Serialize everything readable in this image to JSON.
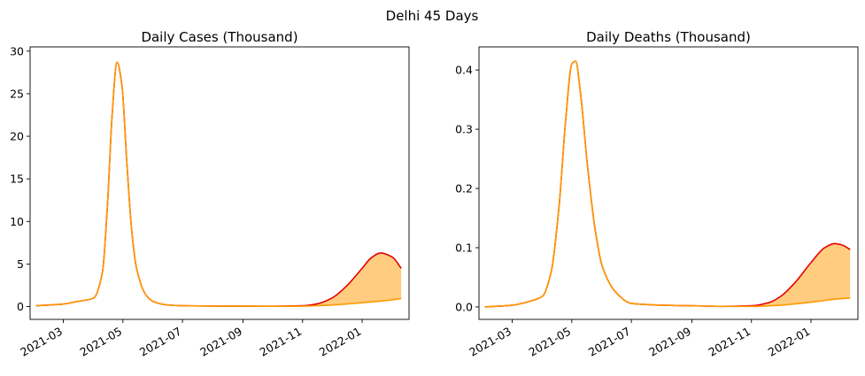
{
  "figure": {
    "suptitle": "Delhi 45 Days"
  },
  "colors": {
    "upper": "#e60000",
    "lower": "#ff9900",
    "band": "#ffcc80",
    "axis": "#000000"
  },
  "chart_data": [
    {
      "type": "area",
      "title": "Daily Cases (Thousand)",
      "xlabel": "",
      "ylabel": "",
      "xlim": [
        "2021-01-26",
        "2022-02-18"
      ],
      "ylim": [
        -1.5,
        30.5
      ],
      "yticks": [
        0,
        5,
        10,
        15,
        20,
        25,
        30
      ],
      "ytick_labels": [
        "0",
        "5",
        "10",
        "15",
        "20",
        "25",
        "30"
      ],
      "xticks": [
        "2021-03-01",
        "2021-05-01",
        "2021-07-01",
        "2021-09-01",
        "2021-11-01",
        "2022-01-01"
      ],
      "xtick_labels": [
        "2021-03",
        "2021-05",
        "2021-07",
        "2021-09",
        "2021-11",
        "2022-01"
      ],
      "grid": false,
      "legend": "none",
      "x": [
        "2021-02-01",
        "2021-03-01",
        "2021-03-15",
        "2021-04-01",
        "2021-04-10",
        "2021-04-15",
        "2021-04-20",
        "2021-04-25",
        "2021-04-30",
        "2021-05-05",
        "2021-05-10",
        "2021-05-15",
        "2021-05-25",
        "2021-06-01",
        "2021-06-15",
        "2021-07-01",
        "2021-08-01",
        "2021-09-01",
        "2021-10-01",
        "2021-11-01",
        "2021-11-15",
        "2021-12-01",
        "2021-12-15",
        "2022-01-01",
        "2022-01-10",
        "2022-01-20",
        "2022-02-01",
        "2022-02-10"
      ],
      "series": [
        {
          "values": [
            0.1,
            0.3,
            0.6,
            1.0,
            4.0,
            11.5,
            22.5,
            28.7,
            26.0,
            17.0,
            9.0,
            4.5,
            1.3,
            0.6,
            0.2,
            0.1,
            0.06,
            0.05,
            0.04,
            0.1,
            0.3,
            1.0,
            2.3,
            4.5,
            5.7,
            6.3,
            5.8,
            4.5
          ]
        },
        {
          "values": [
            0.1,
            0.3,
            0.6,
            1.0,
            4.0,
            11.5,
            22.5,
            28.7,
            26.0,
            17.0,
            9.0,
            4.5,
            1.3,
            0.6,
            0.2,
            0.1,
            0.06,
            0.05,
            0.04,
            0.05,
            0.1,
            0.18,
            0.3,
            0.45,
            0.55,
            0.65,
            0.8,
            0.95
          ]
        }
      ]
    },
    {
      "type": "area",
      "title": "Daily Deaths (Thousand)",
      "xlabel": "",
      "ylabel": "",
      "xlim": [
        "2021-01-26",
        "2022-02-18"
      ],
      "ylim": [
        -0.021,
        0.439
      ],
      "yticks": [
        0.0,
        0.1,
        0.2,
        0.3,
        0.4
      ],
      "ytick_labels": [
        "0.0",
        "0.1",
        "0.2",
        "0.3",
        "0.4"
      ],
      "xticks": [
        "2021-03-01",
        "2021-05-01",
        "2021-07-01",
        "2021-09-01",
        "2021-11-01",
        "2022-01-01"
      ],
      "xtick_labels": [
        "2021-03",
        "2021-05",
        "2021-07",
        "2021-09",
        "2021-11",
        "2022-01"
      ],
      "grid": false,
      "legend": "none",
      "x": [
        "2021-02-01",
        "2021-03-01",
        "2021-03-20",
        "2021-04-01",
        "2021-04-10",
        "2021-04-18",
        "2021-04-25",
        "2021-05-01",
        "2021-05-05",
        "2021-05-10",
        "2021-05-17",
        "2021-05-25",
        "2021-06-01",
        "2021-06-15",
        "2021-07-01",
        "2021-08-01",
        "2021-09-01",
        "2021-10-01",
        "2021-11-01",
        "2021-11-20",
        "2021-12-01",
        "2021-12-15",
        "2022-01-01",
        "2022-01-15",
        "2022-01-25",
        "2022-02-01",
        "2022-02-10"
      ],
      "series": [
        {
          "values": [
            0.0,
            0.003,
            0.01,
            0.018,
            0.06,
            0.17,
            0.32,
            0.41,
            0.415,
            0.36,
            0.24,
            0.13,
            0.07,
            0.025,
            0.006,
            0.003,
            0.002,
            0.001,
            0.002,
            0.008,
            0.018,
            0.04,
            0.075,
            0.1,
            0.107,
            0.105,
            0.097
          ]
        },
        {
          "values": [
            0.0,
            0.003,
            0.01,
            0.018,
            0.06,
            0.17,
            0.32,
            0.41,
            0.415,
            0.36,
            0.24,
            0.13,
            0.07,
            0.025,
            0.006,
            0.003,
            0.002,
            0.001,
            0.001,
            0.002,
            0.003,
            0.005,
            0.008,
            0.011,
            0.013,
            0.014,
            0.015
          ]
        }
      ]
    }
  ]
}
